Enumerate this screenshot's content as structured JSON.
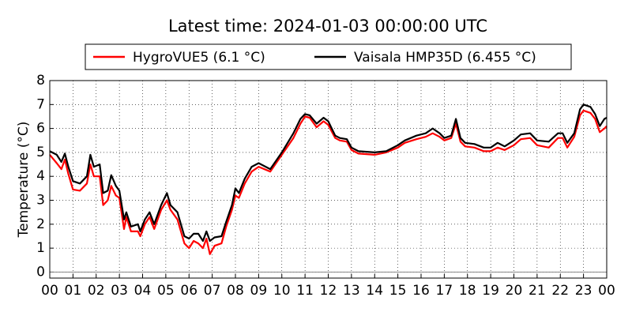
{
  "chart_data": {
    "type": "line",
    "title": "Latest time: 2024-01-03 00:00:00 UTC",
    "ylabel": "Temperature (°C)",
    "x": [
      0,
      0.3,
      0.5,
      0.65,
      0.8,
      1.0,
      1.3,
      1.6,
      1.75,
      1.9,
      2.15,
      2.3,
      2.5,
      2.65,
      2.85,
      3.0,
      3.2,
      3.3,
      3.5,
      3.8,
      3.9,
      4.1,
      4.3,
      4.5,
      4.8,
      5.05,
      5.2,
      5.5,
      5.8,
      6.0,
      6.2,
      6.4,
      6.6,
      6.75,
      6.9,
      7.1,
      7.4,
      7.6,
      7.85,
      8.0,
      8.15,
      8.4,
      8.7,
      9.0,
      9.5,
      10.0,
      10.5,
      10.8,
      11.0,
      11.2,
      11.5,
      11.8,
      12.0,
      12.3,
      12.5,
      12.8,
      13.0,
      13.3,
      14.0,
      14.5,
      15.0,
      15.3,
      15.8,
      16.2,
      16.5,
      16.8,
      17.0,
      17.3,
      17.5,
      17.7,
      17.9,
      18.3,
      18.7,
      19.0,
      19.3,
      19.6,
      20.0,
      20.3,
      20.7,
      21.0,
      21.5,
      21.9,
      22.1,
      22.3,
      22.6,
      22.85,
      23.0,
      23.3,
      23.5,
      23.7,
      23.9,
      24.0
    ],
    "series": [
      {
        "name": "HygroVUE5 (6.1 °C)",
        "color": "#ff0000",
        "values": [
          4.9,
          4.55,
          4.3,
          4.7,
          4.1,
          3.45,
          3.4,
          3.7,
          4.5,
          4.0,
          4.0,
          2.8,
          3.0,
          3.6,
          3.2,
          3.1,
          1.8,
          2.3,
          1.7,
          1.7,
          1.5,
          2.0,
          2.3,
          1.8,
          2.6,
          3.0,
          2.6,
          2.2,
          1.2,
          1.0,
          1.3,
          1.2,
          1.0,
          1.4,
          0.75,
          1.1,
          1.2,
          1.9,
          2.6,
          3.2,
          3.1,
          3.7,
          4.2,
          4.4,
          4.2,
          4.9,
          5.6,
          6.2,
          6.5,
          6.45,
          6.05,
          6.3,
          6.15,
          5.6,
          5.5,
          5.45,
          5.1,
          4.95,
          4.9,
          5.0,
          5.2,
          5.4,
          5.55,
          5.65,
          5.8,
          5.65,
          5.5,
          5.6,
          6.2,
          5.45,
          5.25,
          5.2,
          5.05,
          5.05,
          5.2,
          5.1,
          5.3,
          5.55,
          5.6,
          5.3,
          5.2,
          5.6,
          5.6,
          5.2,
          5.65,
          6.55,
          6.75,
          6.65,
          6.4,
          5.85,
          6.0,
          6.1
        ]
      },
      {
        "name": "Vaisala HMP35D (6.455 °C)",
        "color": "#000000",
        "values": [
          5.05,
          4.9,
          4.6,
          4.95,
          4.4,
          3.8,
          3.7,
          4.0,
          4.9,
          4.4,
          4.5,
          3.3,
          3.4,
          4.05,
          3.6,
          3.4,
          2.2,
          2.5,
          1.9,
          2.0,
          1.7,
          2.2,
          2.5,
          2.0,
          2.8,
          3.3,
          2.8,
          2.5,
          1.5,
          1.4,
          1.6,
          1.6,
          1.3,
          1.7,
          1.3,
          1.45,
          1.5,
          2.1,
          2.8,
          3.5,
          3.3,
          3.9,
          4.4,
          4.55,
          4.3,
          5.0,
          5.8,
          6.4,
          6.6,
          6.55,
          6.2,
          6.45,
          6.3,
          5.7,
          5.6,
          5.55,
          5.2,
          5.05,
          5.0,
          5.05,
          5.3,
          5.5,
          5.7,
          5.8,
          6.0,
          5.8,
          5.6,
          5.7,
          6.4,
          5.6,
          5.4,
          5.35,
          5.2,
          5.2,
          5.4,
          5.25,
          5.5,
          5.75,
          5.8,
          5.5,
          5.45,
          5.8,
          5.8,
          5.4,
          5.8,
          6.8,
          7.0,
          6.9,
          6.6,
          6.1,
          6.4,
          6.45
        ]
      }
    ],
    "xlim": [
      0,
      24
    ],
    "xticks": [
      {
        "value": 0,
        "label": "00"
      },
      {
        "value": 1,
        "label": "01"
      },
      {
        "value": 2,
        "label": "02"
      },
      {
        "value": 3,
        "label": "03"
      },
      {
        "value": 4,
        "label": "04"
      },
      {
        "value": 5,
        "label": "05"
      },
      {
        "value": 6,
        "label": "06"
      },
      {
        "value": 7,
        "label": "07"
      },
      {
        "value": 8,
        "label": "08"
      },
      {
        "value": 9,
        "label": "09"
      },
      {
        "value": 10,
        "label": "10"
      },
      {
        "value": 11,
        "label": "11"
      },
      {
        "value": 12,
        "label": "12"
      },
      {
        "value": 13,
        "label": "13"
      },
      {
        "value": 14,
        "label": "14"
      },
      {
        "value": 15,
        "label": "15"
      },
      {
        "value": 16,
        "label": "16"
      },
      {
        "value": 17,
        "label": "17"
      },
      {
        "value": 18,
        "label": "18"
      },
      {
        "value": 19,
        "label": "19"
      },
      {
        "value": 20,
        "label": "20"
      },
      {
        "value": 21,
        "label": "21"
      },
      {
        "value": 22,
        "label": "22"
      },
      {
        "value": 23,
        "label": "23"
      },
      {
        "value": 24,
        "label": "00"
      }
    ],
    "ylim": [
      -0.25,
      8
    ],
    "yticks": [
      0,
      1,
      2,
      3,
      4,
      5,
      6,
      7,
      8
    ],
    "hline": 0,
    "grid": true
  }
}
